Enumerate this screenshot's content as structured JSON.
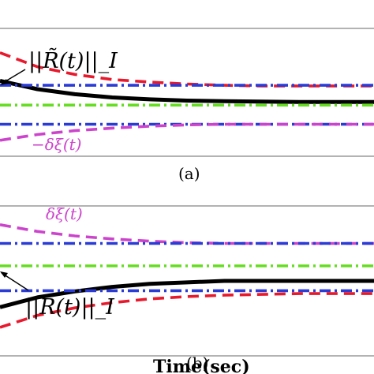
{
  "chart_data": [
    {
      "type": "line",
      "panel_label": "(a)",
      "annotations": [
        {
          "text": "||R̃(t)||_I",
          "color": "#000000"
        },
        {
          "text": "−δξ(t)",
          "color": "#cc44cc"
        }
      ],
      "x": [
        0,
        0.1,
        0.2,
        0.3,
        0.4,
        0.5,
        0.6,
        0.7,
        0.8,
        0.9,
        1.0
      ],
      "ylim": [
        -1,
        1
      ],
      "series": [
        {
          "key": "norm",
          "color": "#000000",
          "style": "solid",
          "values": [
            0.18,
            0.05,
            -0.03,
            -0.08,
            -0.11,
            -0.13,
            -0.14,
            -0.145,
            -0.15,
            -0.15,
            -0.15
          ]
        },
        {
          "key": "red_upper",
          "color": "#e8192c",
          "style": "dash",
          "values": [
            0.62,
            0.4,
            0.28,
            0.2,
            0.16,
            0.13,
            0.11,
            0.1,
            0.1,
            0.1,
            0.1
          ]
        },
        {
          "key": "blue_upper",
          "color": "#2a3bd6",
          "style": "dashdot",
          "values": [
            0.11,
            0.11,
            0.11,
            0.11,
            0.11,
            0.11,
            0.11,
            0.11,
            0.11,
            0.11,
            0.11
          ]
        },
        {
          "key": "green_mid",
          "color": "#66dd22",
          "style": "dashdot",
          "values": [
            -0.2,
            -0.2,
            -0.2,
            -0.2,
            -0.2,
            -0.2,
            -0.2,
            -0.2,
            -0.2,
            -0.2,
            -0.2
          ]
        },
        {
          "key": "blue_lower",
          "color": "#2a3bd6",
          "style": "dashdot",
          "values": [
            -0.5,
            -0.5,
            -0.5,
            -0.5,
            -0.5,
            -0.5,
            -0.5,
            -0.5,
            -0.5,
            -0.5,
            -0.5
          ]
        },
        {
          "key": "purple_lower",
          "color": "#cc44cc",
          "style": "dash",
          "values": [
            -0.75,
            -0.66,
            -0.6,
            -0.56,
            -0.53,
            -0.51,
            -0.5,
            -0.5,
            -0.5,
            -0.5,
            -0.5
          ]
        }
      ]
    },
    {
      "type": "line",
      "panel_label": "(b)",
      "xlabel": "Time(sec)",
      "annotations": [
        {
          "text": "δξ(t)",
          "color": "#cc44cc"
        },
        {
          "text": "||R̃(t)||_I",
          "color": "#000000"
        }
      ],
      "x": [
        0,
        0.1,
        0.2,
        0.3,
        0.4,
        0.5,
        0.6,
        0.7,
        0.8,
        0.9,
        1.0
      ],
      "ylim": [
        -1,
        1
      ],
      "series": [
        {
          "key": "purple_upper",
          "color": "#cc44cc",
          "style": "dash",
          "values": [
            0.75,
            0.66,
            0.6,
            0.56,
            0.53,
            0.51,
            0.5,
            0.5,
            0.5,
            0.5,
            0.5
          ]
        },
        {
          "key": "blue_upper",
          "color": "#2a3bd6",
          "style": "dashdot",
          "values": [
            0.5,
            0.5,
            0.5,
            0.5,
            0.5,
            0.5,
            0.5,
            0.5,
            0.5,
            0.5,
            0.5
          ]
        },
        {
          "key": "green_mid",
          "color": "#66dd22",
          "style": "dashdot",
          "values": [
            0.2,
            0.2,
            0.2,
            0.2,
            0.2,
            0.2,
            0.2,
            0.2,
            0.2,
            0.2,
            0.2
          ]
        },
        {
          "key": "norm",
          "color": "#000000",
          "style": "solid",
          "values": [
            -0.35,
            -0.22,
            -0.14,
            -0.08,
            -0.04,
            -0.02,
            0.0,
            0.0,
            0.0,
            0.0,
            0.0
          ]
        },
        {
          "key": "blue_lower",
          "color": "#2a3bd6",
          "style": "dashdot",
          "values": [
            -0.13,
            -0.13,
            -0.13,
            -0.13,
            -0.13,
            -0.13,
            -0.13,
            -0.13,
            -0.13,
            -0.13,
            -0.13
          ]
        },
        {
          "key": "red_lower",
          "color": "#e8192c",
          "style": "dash",
          "values": [
            -0.62,
            -0.46,
            -0.36,
            -0.29,
            -0.24,
            -0.21,
            -0.19,
            -0.18,
            -0.17,
            -0.17,
            -0.17
          ]
        }
      ]
    }
  ]
}
